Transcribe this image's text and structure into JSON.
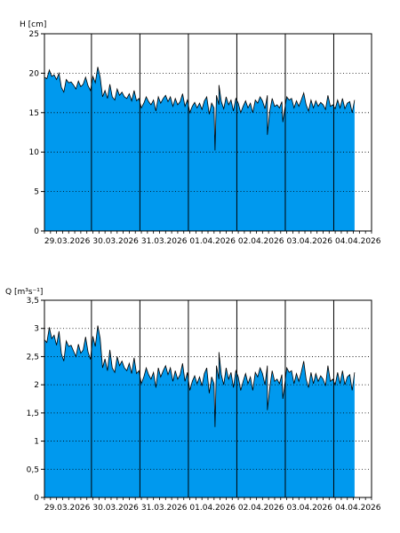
{
  "chart_data": [
    {
      "type": "area",
      "ylabel": "H [cm]",
      "ylim": [
        0,
        25
      ],
      "yticks": [
        "0",
        "5",
        "10",
        "15",
        "20",
        "25"
      ],
      "x_labels": [
        "29.03.2026",
        "30.03.2026",
        "31.03.2026",
        "01.04.2026",
        "02.04.2026",
        "03.04.2026",
        "04.04.2026"
      ],
      "xlim_days": [
        0,
        6.75
      ],
      "data_end_day": 6.4,
      "grid": "dotted-horizontal, solid-vertical",
      "fill_color": "#0099ee",
      "series": [
        {
          "x": [
            0,
            0.05,
            0.1,
            0.15,
            0.2,
            0.25,
            0.3,
            0.35,
            0.4,
            0.45,
            0.5,
            0.55,
            0.6,
            0.65,
            0.7,
            0.75,
            0.8,
            0.85,
            0.9,
            0.95,
            1.0,
            1.05,
            1.1,
            1.15,
            1.2,
            1.25,
            1.3,
            1.35,
            1.4,
            1.45,
            1.5,
            1.55,
            1.6,
            1.65,
            1.7,
            1.75,
            1.8,
            1.85,
            1.9,
            1.95,
            2.0,
            2.05,
            2.1,
            2.15,
            2.2,
            2.25,
            2.3,
            2.35,
            2.4,
            2.45,
            2.5,
            2.55,
            2.6,
            2.65,
            2.7,
            2.75,
            2.8,
            2.85,
            2.9,
            2.95,
            3.0,
            3.05,
            3.1,
            3.15,
            3.2,
            3.25,
            3.3,
            3.35,
            3.4,
            3.45,
            3.5,
            3.55,
            3.6,
            3.65,
            3.7,
            3.75,
            3.8,
            3.85,
            3.9,
            3.95,
            4.0,
            4.05,
            4.1,
            4.15,
            4.2,
            4.25,
            4.3,
            4.35,
            4.4,
            4.45,
            4.5,
            4.55,
            4.6,
            4.65,
            4.7,
            4.75,
            4.8,
            4.85,
            4.9,
            4.95,
            5.0,
            5.05,
            5.1,
            5.15,
            5.2,
            5.25,
            5.3,
            5.35,
            5.4,
            5.45,
            5.5,
            5.55,
            5.6,
            5.65,
            5.7,
            5.75,
            5.8,
            5.85,
            5.9,
            5.95,
            6.0,
            6.05,
            6.1,
            6.15,
            6.2,
            6.25,
            6.3,
            6.35,
            6.4
          ],
          "values": [
            19.5,
            19.3,
            20.4,
            19.6,
            19.8,
            19.2,
            20.0,
            18.2,
            17.6,
            19.2,
            18.8,
            18.9,
            18.5,
            18.0,
            19.0,
            18.3,
            18.6,
            19.5,
            18.4,
            17.8,
            19.6,
            18.8,
            20.8,
            19.5,
            17.0,
            17.8,
            16.8,
            18.6,
            17.0,
            16.6,
            18.0,
            17.2,
            17.6,
            17.0,
            16.8,
            17.4,
            16.5,
            17.8,
            16.5,
            16.8,
            15.6,
            16.2,
            17.0,
            16.4,
            16.0,
            16.6,
            15.2,
            17.0,
            16.2,
            16.8,
            17.2,
            16.4,
            17.0,
            15.8,
            16.8,
            16.0,
            16.4,
            17.4,
            15.8,
            16.6,
            15.0,
            15.8,
            16.3,
            15.6,
            16.2,
            15.4,
            16.5,
            17.0,
            14.8,
            16.2,
            15.6,
            17.2,
            16.0,
            16.4,
            15.5,
            17.0,
            16.0,
            16.6,
            15.2,
            16.8,
            16.2,
            15.0,
            15.8,
            16.5,
            15.6,
            16.2,
            15.0,
            16.6,
            16.2,
            17.0,
            16.5,
            15.5,
            17.2,
            15.2,
            16.8,
            15.8,
            16.0,
            15.6,
            16.4,
            15.2,
            17.0,
            16.6,
            16.8,
            15.6,
            16.5,
            15.8,
            16.6,
            17.5,
            16.0,
            15.2,
            16.6,
            15.6,
            16.5,
            15.8,
            16.3,
            16.0,
            15.4,
            17.2,
            15.8,
            16.0,
            15.5,
            16.6,
            15.6,
            16.8,
            15.5,
            16.2,
            16.4,
            15.0,
            16.6
          ]
        }
      ],
      "dips": [
        {
          "x": 3.52,
          "value": 10.2
        },
        {
          "x": 3.6,
          "value": 18.5
        },
        {
          "x": 4.6,
          "value": 12.2
        },
        {
          "x": 4.92,
          "value": 13.8
        }
      ]
    },
    {
      "type": "area",
      "ylabel": "Q [m³s⁻¹]",
      "ylim": [
        0,
        3.5
      ],
      "yticks": [
        "0",
        "0,5",
        "1",
        "1,5",
        "2",
        "2,5",
        "3",
        "3,5"
      ],
      "x_labels": [
        "29.03.2026",
        "30.03.2026",
        "31.03.2026",
        "01.04.2026",
        "02.04.2026",
        "03.04.2026",
        "04.04.2026"
      ],
      "xlim_days": [
        0,
        6.75
      ],
      "data_end_day": 6.4,
      "grid": "dotted-horizontal, solid-vertical",
      "fill_color": "#0099ee",
      "series": [
        {
          "x": [
            0,
            0.05,
            0.1,
            0.15,
            0.2,
            0.25,
            0.3,
            0.35,
            0.4,
            0.45,
            0.5,
            0.55,
            0.6,
            0.65,
            0.7,
            0.75,
            0.8,
            0.85,
            0.9,
            0.95,
            1.0,
            1.05,
            1.1,
            1.15,
            1.2,
            1.25,
            1.3,
            1.35,
            1.4,
            1.45,
            1.5,
            1.55,
            1.6,
            1.65,
            1.7,
            1.75,
            1.8,
            1.85,
            1.9,
            1.95,
            2.0,
            2.05,
            2.1,
            2.15,
            2.2,
            2.25,
            2.3,
            2.35,
            2.4,
            2.45,
            2.5,
            2.55,
            2.6,
            2.65,
            2.7,
            2.75,
            2.8,
            2.85,
            2.9,
            2.95,
            3.0,
            3.05,
            3.1,
            3.15,
            3.2,
            3.25,
            3.3,
            3.35,
            3.4,
            3.45,
            3.5,
            3.55,
            3.6,
            3.65,
            3.7,
            3.75,
            3.8,
            3.85,
            3.9,
            3.95,
            4.0,
            4.05,
            4.1,
            4.15,
            4.2,
            4.25,
            4.3,
            4.35,
            4.4,
            4.45,
            4.5,
            4.55,
            4.6,
            4.65,
            4.7,
            4.75,
            4.8,
            4.85,
            4.9,
            4.95,
            5.0,
            5.05,
            5.1,
            5.15,
            5.2,
            5.25,
            5.3,
            5.35,
            5.4,
            5.45,
            5.5,
            5.55,
            5.6,
            5.65,
            5.7,
            5.75,
            5.8,
            5.85,
            5.9,
            5.95,
            6.0,
            6.05,
            6.1,
            6.15,
            6.2,
            6.25,
            6.3,
            6.35,
            6.4
          ],
          "values": [
            2.8,
            2.75,
            3.02,
            2.82,
            2.88,
            2.7,
            2.95,
            2.55,
            2.42,
            2.78,
            2.68,
            2.7,
            2.6,
            2.5,
            2.72,
            2.56,
            2.62,
            2.85,
            2.58,
            2.45,
            2.86,
            2.68,
            3.05,
            2.82,
            2.3,
            2.46,
            2.25,
            2.62,
            2.3,
            2.22,
            2.5,
            2.34,
            2.42,
            2.3,
            2.25,
            2.38,
            2.2,
            2.48,
            2.2,
            2.25,
            2.02,
            2.14,
            2.3,
            2.18,
            2.1,
            2.22,
            1.95,
            2.3,
            2.14,
            2.25,
            2.34,
            2.18,
            2.3,
            2.06,
            2.25,
            2.1,
            2.18,
            2.38,
            2.06,
            2.22,
            1.9,
            2.06,
            2.16,
            2.02,
            2.14,
            1.98,
            2.2,
            2.3,
            1.85,
            2.14,
            2.02,
            2.34,
            2.1,
            2.18,
            2.0,
            2.3,
            2.1,
            2.22,
            1.95,
            2.25,
            2.14,
            1.9,
            2.06,
            2.2,
            2.02,
            2.14,
            1.9,
            2.22,
            2.14,
            2.3,
            2.2,
            2.0,
            2.34,
            1.95,
            2.25,
            2.06,
            2.1,
            2.02,
            2.18,
            1.95,
            2.3,
            2.22,
            2.25,
            2.02,
            2.2,
            2.06,
            2.22,
            2.42,
            2.1,
            1.95,
            2.22,
            2.02,
            2.2,
            2.06,
            2.16,
            2.1,
            1.98,
            2.34,
            2.06,
            2.1,
            2.0,
            2.22,
            2.02,
            2.25,
            2.0,
            2.14,
            2.18,
            1.9,
            2.22
          ]
        }
      ],
      "dips": [
        {
          "x": 3.52,
          "value": 1.25
        },
        {
          "x": 3.6,
          "value": 2.58
        },
        {
          "x": 4.6,
          "value": 1.55
        },
        {
          "x": 4.92,
          "value": 1.75
        }
      ]
    }
  ]
}
